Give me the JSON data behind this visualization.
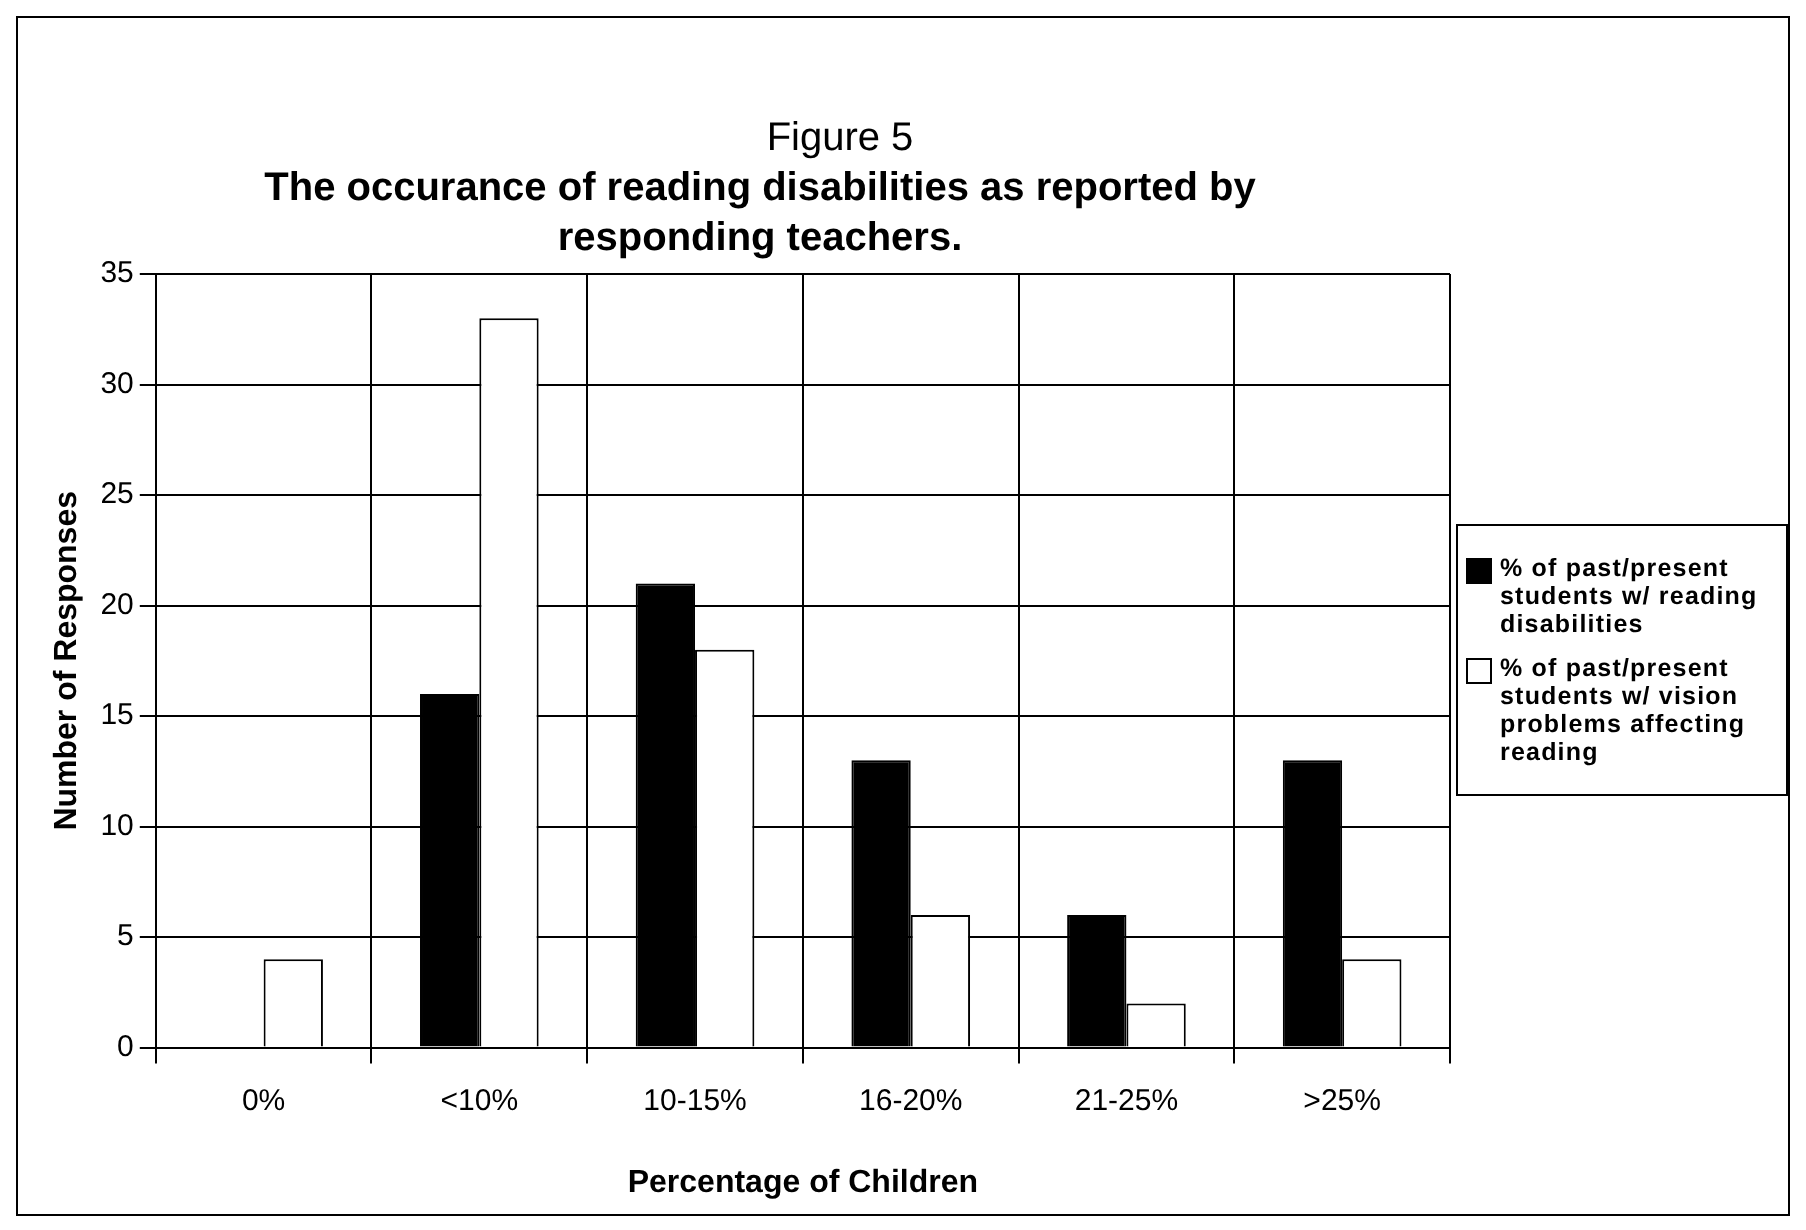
{
  "chart_data": {
    "type": "bar",
    "title": "Figure 5",
    "subtitle": "The occurance of reading disabilities as reported by responding teachers.",
    "xlabel": "Percentage of Children",
    "ylabel": "Number of Responses",
    "categories": [
      "0%",
      "<10%",
      "10-15%",
      "16-20%",
      "21-25%",
      ">25%"
    ],
    "series": [
      {
        "name": "% of past/present students w/ reading disabilities",
        "color": "#000000",
        "values": [
          0,
          16,
          21,
          13,
          6,
          13
        ]
      },
      {
        "name": "% of past/present students w/ vision problems affecting reading",
        "color": "#ffffff",
        "values": [
          4,
          33,
          18,
          6,
          2,
          4
        ]
      }
    ],
    "ylim": [
      0,
      35
    ],
    "yticks": [
      0,
      5,
      10,
      15,
      20,
      25,
      30,
      35
    ],
    "grid": true,
    "legend": "right"
  }
}
